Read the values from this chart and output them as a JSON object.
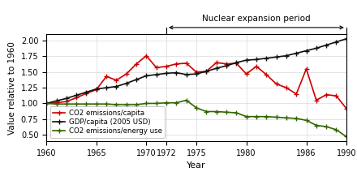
{
  "co2_cap_x": [
    1960,
    1961,
    1962,
    1963,
    1964,
    1965,
    1966,
    1967,
    1968,
    1969,
    1970,
    1971,
    1972,
    1973,
    1974,
    1975,
    1976,
    1977,
    1978,
    1979,
    1980,
    1981,
    1982,
    1983,
    1984,
    1985,
    1986,
    1987,
    1988,
    1989,
    1990
  ],
  "co2_cap_y": [
    1.0,
    1.01,
    1.03,
    1.09,
    1.16,
    1.22,
    1.43,
    1.37,
    1.47,
    1.63,
    1.76,
    1.57,
    1.59,
    1.63,
    1.64,
    1.5,
    1.51,
    1.65,
    1.63,
    1.64,
    1.47,
    1.59,
    1.46,
    1.31,
    1.25,
    1.15,
    1.55,
    1.05,
    1.14,
    1.12,
    0.92
  ],
  "gdp_x": [
    1960,
    1961,
    1962,
    1963,
    1964,
    1965,
    1966,
    1967,
    1968,
    1969,
    1970,
    1971,
    1972,
    1973,
    1974,
    1975,
    1976,
    1977,
    1978,
    1979,
    1980,
    1981,
    1982,
    1983,
    1984,
    1985,
    1986,
    1987,
    1988,
    1989,
    1990
  ],
  "gdp_y": [
    1.0,
    1.04,
    1.08,
    1.13,
    1.18,
    1.23,
    1.25,
    1.27,
    1.32,
    1.38,
    1.44,
    1.46,
    1.48,
    1.49,
    1.46,
    1.47,
    1.51,
    1.56,
    1.6,
    1.65,
    1.69,
    1.7,
    1.72,
    1.74,
    1.76,
    1.8,
    1.84,
    1.88,
    1.93,
    1.98,
    2.03
  ],
  "co2_en_x": [
    1960,
    1961,
    1962,
    1963,
    1964,
    1965,
    1966,
    1967,
    1968,
    1969,
    1970,
    1971,
    1972,
    1973,
    1974,
    1975,
    1976,
    1977,
    1978,
    1979,
    1980,
    1981,
    1982,
    1983,
    1984,
    1985,
    1986,
    1987,
    1988,
    1989,
    1990
  ],
  "co2_en_y": [
    1.0,
    0.99,
    0.99,
    0.99,
    0.99,
    0.99,
    0.99,
    0.98,
    0.98,
    0.98,
    1.0,
    1.0,
    1.01,
    1.01,
    1.05,
    0.93,
    0.87,
    0.87,
    0.86,
    0.85,
    0.79,
    0.79,
    0.79,
    0.78,
    0.77,
    0.76,
    0.73,
    0.65,
    0.63,
    0.58,
    0.47
  ],
  "nuclear_start": 1972,
  "nuclear_end": 1990,
  "xlabel": "Year",
  "ylabel": "Value relative to 1960",
  "co2_capita_color": "#cc0000",
  "gdp_capita_color": "#111111",
  "co2_energy_color": "#336600",
  "xlim": [
    1960,
    1990
  ],
  "ylim": [
    0.4,
    2.1
  ],
  "xticks": [
    1960,
    1965,
    1970,
    1972,
    1975,
    1980,
    1986,
    1990
  ],
  "xtick_labels": [
    "1960",
    "1965",
    "1970",
    "1972",
    "1975",
    "1980",
    "1986",
    "1990"
  ],
  "yticks": [
    0.5,
    0.75,
    1.0,
    1.25,
    1.5,
    1.75,
    2.0
  ],
  "ytick_labels": [
    "0.50",
    "0.75",
    "1.00",
    "1.25",
    "1.50",
    "1.75",
    "2.00"
  ],
  "nuclear_label": "Nuclear expansion period",
  "legend_co2_cap": "CO2 emissions/capita",
  "legend_gdp": "GDP/capita (2005 USD)",
  "legend_co2_en": "CO2 emissions/energy use"
}
